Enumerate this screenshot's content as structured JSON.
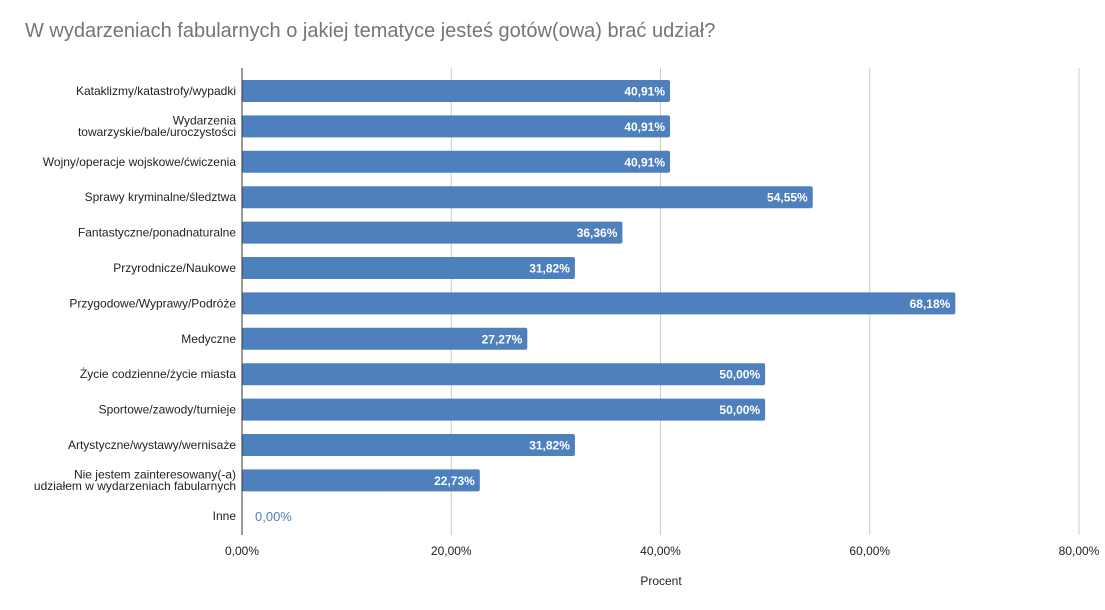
{
  "chart_data": {
    "type": "bar",
    "orientation": "horizontal",
    "title": "W wydarzeniach fabularnych o jakiej tematyce jesteś gotów(owa) brać udział?",
    "xlabel": "Procent",
    "ylabel": "",
    "xlim": [
      0,
      80
    ],
    "ticks": [
      "0,00%",
      "20,00%",
      "40,00%",
      "60,00%",
      "80,00%"
    ],
    "grid": true,
    "bar_color": "#4e80be",
    "categories": [
      [
        "Kataklizmy/katastrofy/wypadki"
      ],
      [
        "Wydarzenia",
        "towarzyskie/bale/uroczystości"
      ],
      [
        "Wojny/operacje wojskowe/ćwiczenia"
      ],
      [
        "Sprawy kryminalne/śledztwa"
      ],
      [
        "Fantastyczne/ponadnaturalne"
      ],
      [
        "Przyrodnicze/Naukowe"
      ],
      [
        "Przygodowe/Wyprawy/Podróże"
      ],
      [
        "Medyczne"
      ],
      [
        "Życie codzienne/życie miasta"
      ],
      [
        "Sportowe/zawody/turnieje"
      ],
      [
        "Artystyczne/wystawy/wernisaże"
      ],
      [
        "Nie jestem zainteresowany(-a)",
        "udziałem w wydarzeniach fabularnych"
      ],
      [
        "Inne"
      ]
    ],
    "values": [
      40.91,
      40.91,
      40.91,
      54.55,
      36.36,
      31.82,
      68.18,
      27.27,
      50.0,
      50.0,
      31.82,
      22.73,
      0.0
    ],
    "value_labels": [
      "40,91%",
      "40,91%",
      "40,91%",
      "54,55%",
      "36,36%",
      "31,82%",
      "68,18%",
      "27,27%",
      "50,00%",
      "50,00%",
      "31,82%",
      "22,73%",
      "0,00%"
    ]
  }
}
